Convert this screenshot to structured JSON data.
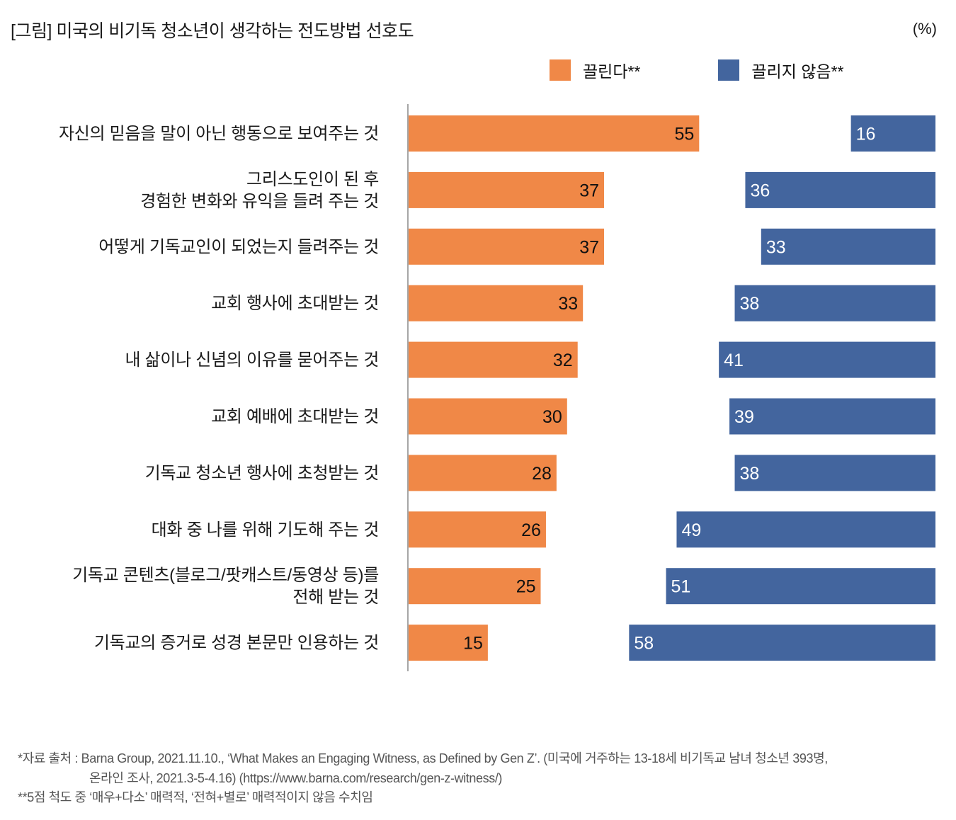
{
  "header": {
    "title": "[그림] 미국의 비기독 청소년이 생각하는 전도방법 선호도",
    "unit": "(%)"
  },
  "legend": [
    {
      "label": "끌린다**",
      "color": "#F08847"
    },
    {
      "label": "끌리지 않음**",
      "color": "#43659E"
    }
  ],
  "chart_data": {
    "type": "bar",
    "orientation": "horizontal",
    "title": "[그림] 미국의 비기독 청소년이 생각하는 전도방법 선호도",
    "unit": "%",
    "xlabel": "",
    "ylabel": "",
    "grid": false,
    "legend_position": "top-right",
    "categories": [
      [
        "자신의 믿음을 말이 아닌 행동으로 보여주는 것"
      ],
      [
        "그리스도인이 된 후",
        "경험한 변화와 유익을 들려 주는 것"
      ],
      [
        "어떻게 기독교인이 되었는지 들려주는 것"
      ],
      [
        "교회 행사에 초대받는 것"
      ],
      [
        "내 삶이나 신념의 이유를 묻어주는 것"
      ],
      [
        "교회 예배에 초대받는 것"
      ],
      [
        "기독교 청소년 행사에 초청받는 것"
      ],
      [
        "대화 중 나를 위해 기도해 주는 것"
      ],
      [
        "기독교 콘텐츠(블로그/팟캐스트/동영상 등)를",
        "전해 받는 것"
      ],
      [
        "기독교의 증거로 성경 본문만 인용하는 것"
      ]
    ],
    "series": [
      {
        "name": "끌린다**",
        "color": "#F08847",
        "label_color": "#111111",
        "align": "left-from-axis",
        "values": [
          55,
          37,
          37,
          33,
          32,
          30,
          28,
          26,
          25,
          15
        ]
      },
      {
        "name": "끌리지 않음**",
        "color": "#43659E",
        "label_color": "#ffffff",
        "align": "right-aligned",
        "values": [
          16,
          36,
          33,
          38,
          41,
          39,
          38,
          49,
          51,
          58
        ]
      }
    ],
    "xlim": [
      0,
      60
    ]
  },
  "footnotes": [
    "*자료 출처 : Barna Group, 2021.11.10., ‘What Makes an Engaging Witness, as Defined by Gen Z’. (미국에 거주하는 13-18세 비기독교 남녀 청소년 393명,",
    "온라인 조사, 2021.3-5-4.16) (https://www.barna.com/research/gen-z-witness/)",
    "**5점 척도 중 ‘매우+다소’ 매력적, ‘전혀+별로’ 매력적이지 않음 수치임"
  ]
}
